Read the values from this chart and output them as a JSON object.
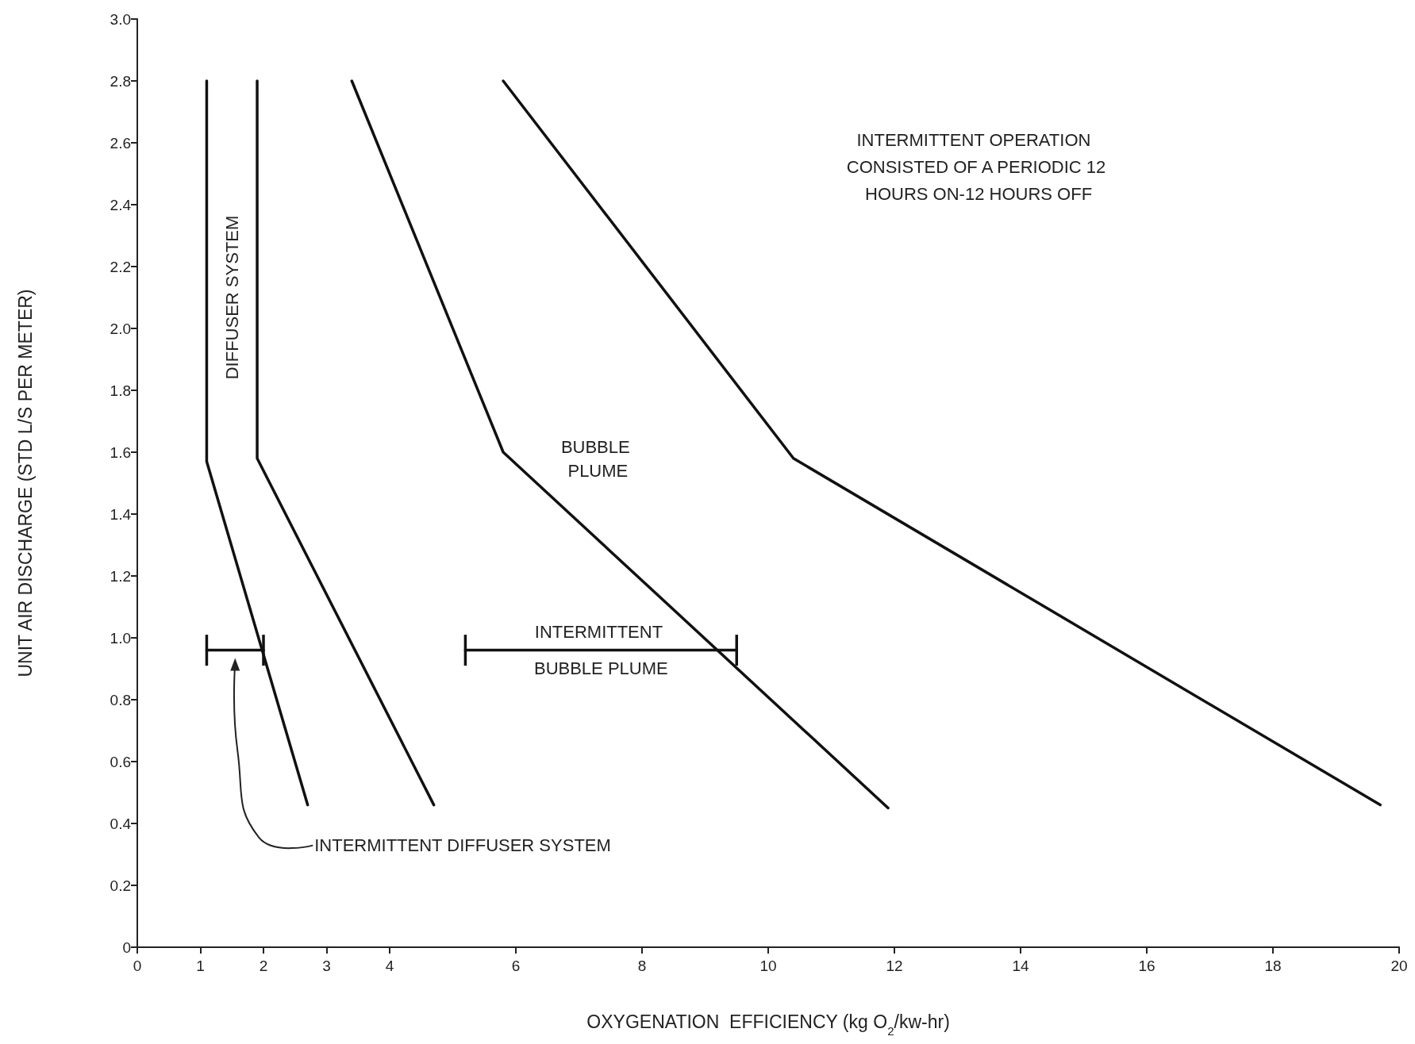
{
  "chart_data": {
    "type": "line",
    "xlabel": "OXYGENATION  EFFICIENCY (kg O$_{2}$/kw-hr)",
    "ylabel": "UNIT AIR DISCHARGE (STD L/S PER METER)",
    "xlim": [
      0,
      20
    ],
    "xticks": [
      0,
      1,
      2,
      3,
      4,
      6,
      8,
      10,
      12,
      14,
      16,
      18,
      20
    ],
    "ylim": [
      0,
      3.0
    ],
    "yticks": [
      0,
      0.2,
      0.4,
      0.6,
      0.8,
      {
        "value": 1.0,
        "label": "1.0"
      },
      1.2,
      1.4,
      1.6,
      1.8,
      {
        "value": 2.0,
        "label": "2.0"
      },
      2.2,
      2.4,
      2.6,
      2.8,
      {
        "value": 3.0,
        "label": "3.0"
      }
    ],
    "grid": false,
    "marker": "none",
    "line_style": "solid",
    "series": [
      {
        "color": "#111111",
        "x": [
          1.1,
          1.1,
          2.7
        ],
        "values": [
          2.8,
          1.57,
          0.46
        ]
      },
      {
        "color": "#111111",
        "x": [
          1.9,
          1.9,
          4.7
        ],
        "values": [
          2.8,
          1.58,
          0.46
        ]
      },
      {
        "color": "#111111",
        "x": [
          3.4,
          5.8,
          11.9
        ],
        "values": [
          2.8,
          1.6,
          0.45
        ]
      },
      {
        "color": "#111111",
        "x": [
          5.8,
          10.4,
          19.7
        ],
        "values": [
          2.8,
          1.58,
          0.46
        ]
      },
      {
        "color": "#111111",
        "x": [
          1.1,
          2.0
        ],
        "values": [
          0.96,
          0.96
        ],
        "errors": [
          0.05,
          0.05
        ]
      },
      {
        "color": "#111111",
        "x": [
          5.2,
          9.5
        ],
        "values": [
          0.96,
          0.96
        ],
        "errors": [
          0.05,
          0.05
        ]
      }
    ],
    "annotations": [
      "DIFFUSER SYSTEM",
      "BUBBLE PLUME",
      {
        "text": "INTERMITTENT BUBBLE PLUME",
        "x": 7.35,
        "y": 0.96
      },
      "INTERMITTENT DIFFUSER SYSTEM",
      "INTERMITTENT OPERATION CONSISTED OF A PERIODIC 12 HOURS ON-12 HOURS OFF"
    ]
  }
}
